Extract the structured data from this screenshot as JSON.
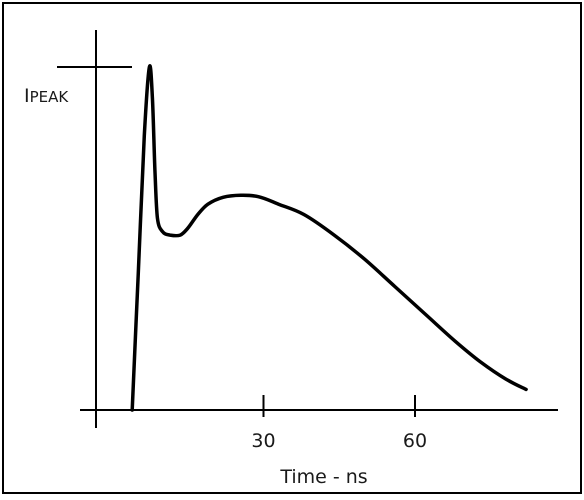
{
  "chart_data": {
    "type": "line",
    "title": "",
    "xlabel": "Time - ns",
    "ylabel": "",
    "xlim": [
      -4,
      86
    ],
    "ylim": [
      0,
      1.0
    ],
    "grid": false,
    "legend": "none",
    "x_ticks": [
      {
        "value": 30,
        "label": "30"
      },
      {
        "value": 60,
        "label": "60"
      }
    ],
    "peak_marker": {
      "label_prefix": "I",
      "label_suffix": "PEAK",
      "value": 1.0
    },
    "series": [
      {
        "color": "#000000",
        "x": [
          4,
          5.2,
          6.4,
          7.4,
          8.0,
          8.5,
          9.0,
          10.0,
          11.5,
          13.5,
          15.0,
          17.0,
          19.0,
          22.0,
          25.5,
          29.0,
          33.0,
          38.0,
          44.0,
          50.0,
          56.0,
          62.0,
          68.0,
          73.0,
          78.0,
          82.0
        ],
        "y": [
          0.0,
          0.4,
          0.8,
          1.0,
          0.91,
          0.7,
          0.56,
          0.52,
          0.51,
          0.51,
          0.53,
          0.57,
          0.6,
          0.62,
          0.626,
          0.622,
          0.6,
          0.57,
          0.51,
          0.44,
          0.36,
          0.28,
          0.2,
          0.14,
          0.09,
          0.06
        ]
      }
    ]
  }
}
